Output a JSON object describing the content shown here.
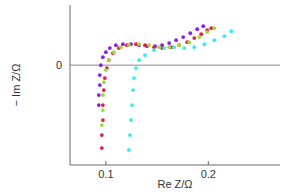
{
  "chart_data": {
    "type": "scatter",
    "x_label": "Re Z/Ω",
    "y_label": "− Im Z/Ω",
    "xlim": [
      0.065,
      0.27
    ],
    "ylim": [
      -0.098,
      0.059
    ],
    "xticks": [
      0.1,
      0.2
    ],
    "yticks": [
      0
    ],
    "marker": "circle",
    "series": [
      {
        "color": "#8b1ee0",
        "x": [
          0.0931,
          0.0931,
          0.0941,
          0.0941,
          0.0951,
          0.0971,
          0.1,
          0.1039,
          0.1098,
          0.1167,
          0.1245,
          0.1324,
          0.1402,
          0.148,
          0.1549,
          0.1618,
          0.1686,
          0.1755,
          0.1824,
          0.1892,
          0.1951
        ],
        "values": [
          -0.0392,
          -0.0294,
          -0.0196,
          -0.0098,
          0,
          0.0078,
          0.0127,
          0.0167,
          0.0196,
          0.0206,
          0.0206,
          0.0196,
          0.0186,
          0.0186,
          0.0196,
          0.0216,
          0.0245,
          0.0275,
          0.0314,
          0.0353,
          0.0382
        ]
      },
      {
        "color": "#e0203a",
        "x": [
          0.0961,
          0.0961,
          0.0971,
          0.0971,
          0.098,
          0.099,
          0.101,
          0.1029,
          0.1069,
          0.1127,
          0.1206,
          0.1294,
          0.1382,
          0.1471,
          0.1549,
          0.1637,
          0.1716,
          0.1794,
          0.1863,
          0.1931,
          0.199,
          0.2029
        ],
        "values": [
          -0.0814,
          -0.0686,
          -0.0539,
          -0.0392,
          -0.0245,
          -0.0127,
          -0.0029,
          0.0049,
          0.0118,
          0.0167,
          0.0196,
          0.0206,
          0.0196,
          0.0176,
          0.0167,
          0.0176,
          0.0196,
          0.0225,
          0.0265,
          0.0304,
          0.0343,
          0.0363
        ]
      },
      {
        "color": "#9fd93a",
        "x": [
          0.0961,
          0.0971,
          0.0971,
          0.098,
          0.1,
          0.1029,
          0.1078,
          0.1147,
          0.1225,
          0.1324,
          0.1422,
          0.152,
          0.1618,
          0.1716,
          0.1814,
          0.1912,
          0.199,
          0.2059
        ],
        "values": [
          -0.0588,
          -0.0441,
          -0.0294,
          -0.0167,
          -0.0049,
          0.0049,
          0.0127,
          0.0176,
          0.0196,
          0.0206,
          0.0196,
          0.0176,
          0.0176,
          0.0196,
          0.0225,
          0.0275,
          0.0324,
          0.0363
        ]
      },
      {
        "color": "#33eef0",
        "x": [
          0.1225,
          0.1235,
          0.1245,
          0.1255,
          0.1265,
          0.1275,
          0.1294,
          0.1324,
          0.1382,
          0.1471,
          0.1569,
          0.1667,
          0.1765,
          0.1863,
          0.1961,
          0.2059,
          0.2157,
          0.2225
        ],
        "values": [
          -0.0833,
          -0.0686,
          -0.0539,
          -0.0392,
          -0.0245,
          -0.0127,
          -0.0029,
          0.0049,
          0.0098,
          0.0147,
          0.0167,
          0.0176,
          0.0167,
          0.0176,
          0.0206,
          0.0245,
          0.0284,
          0.0333
        ]
      }
    ]
  }
}
